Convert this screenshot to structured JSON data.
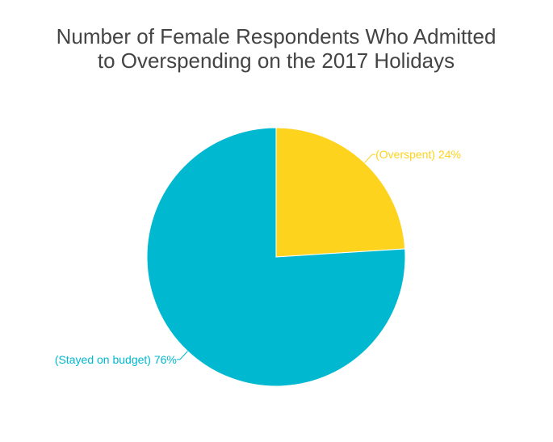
{
  "chart_data": {
    "type": "pie",
    "title_lines": [
      "Number of Female Respondents Who Admitted",
      "to Overspending on the 2017 Holidays"
    ],
    "slices": [
      {
        "label": "(Overspent) 24%",
        "value": 24,
        "color": "#fdd31d"
      },
      {
        "label": "(Stayed on budget) 76%",
        "value": 76,
        "color": "#00b8d0"
      }
    ]
  }
}
